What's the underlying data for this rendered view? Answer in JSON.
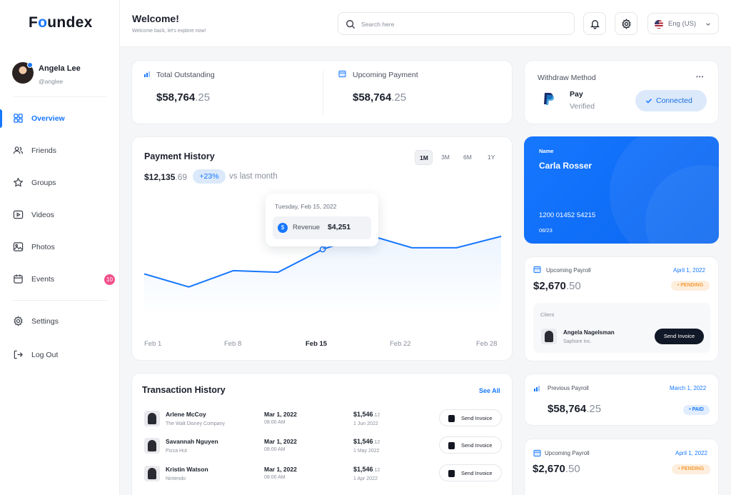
{
  "brand": {
    "name_prefix": "F",
    "name_o": "o",
    "name_suffix": "undex"
  },
  "user": {
    "name": "Angela Lee",
    "handle": "@anglee"
  },
  "nav": [
    {
      "label": "Overview",
      "icon": "grid-icon"
    },
    {
      "label": "Friends",
      "icon": "users-icon"
    },
    {
      "label": "Groups",
      "icon": "star-icon"
    },
    {
      "label": "Videos",
      "icon": "video-icon"
    },
    {
      "label": "Photos",
      "icon": "image-icon"
    },
    {
      "label": "Events",
      "icon": "calendar-icon",
      "badge": "10"
    }
  ],
  "nav_bottom": [
    {
      "label": "Settings",
      "icon": "gear-icon"
    },
    {
      "label": "Log Out",
      "icon": "logout-icon"
    }
  ],
  "header": {
    "title": "Welcome!",
    "subtitle": "Welcome back, let's explore now!",
    "search_placeholder": "Search here",
    "language": "Eng (US)"
  },
  "summary": {
    "total_outstanding": {
      "label": "Total Outstanding",
      "amount": "$58,764",
      "cents": ".25"
    },
    "upcoming_payment": {
      "label": "Upcoming Payment",
      "amount": "$58,764",
      "cents": ".25"
    }
  },
  "withdraw": {
    "title": "Withdraw Method",
    "more": "•••",
    "method": "Pay",
    "status": "Verified",
    "button": "Connected"
  },
  "payment_history": {
    "title": "Payment History",
    "periods": [
      "1M",
      "3M",
      "6M",
      "1Y"
    ],
    "amount": "$12,135",
    "cents": ".69",
    "change": "+23%",
    "compare": "vs last month",
    "tooltip": {
      "date": "Tuesday, Feb 15, 2022",
      "label": "Revenue",
      "value": "$4,251"
    },
    "x_labels": [
      "Feb 1",
      "Feb 8",
      "Feb 15",
      "Feb 22",
      "Feb 28"
    ]
  },
  "chart_data": {
    "type": "line",
    "title": "Payment History",
    "x": [
      "Feb 1",
      "Feb 4",
      "Feb 8",
      "Feb 11",
      "Feb 15",
      "Feb 18",
      "Feb 22",
      "Feb 25",
      "Feb 28"
    ],
    "values": [
      3500,
      3100,
      3600,
      3550,
      4251,
      4700,
      4300,
      4300,
      4650
    ],
    "ylim": [
      2000,
      5500
    ],
    "grid": false
  },
  "card": {
    "name_label": "Name",
    "name": "Carla Rosser",
    "number": "1200 01452 54215",
    "expiry": "08/23"
  },
  "upcoming_payroll": {
    "label": "Upcoming Payroll",
    "date": "April 1, 2022",
    "amount": "$2,670",
    "cents": ".50",
    "status": "PENDING",
    "client_label": "Client",
    "client_name": "Angela Nagelsman",
    "client_company": "Saphore Inc.",
    "button": "Send Invoice"
  },
  "previous_payroll": {
    "label": "Previous Payroll",
    "date": "March 1, 2022",
    "amount": "$58,764",
    "cents": ".25",
    "status": "PAID"
  },
  "upcoming_payroll_2": {
    "label": "Upcoming Payroll",
    "date": "April 1, 2022",
    "amount": "$2,670",
    "cents": ".50",
    "status": "PENDING"
  },
  "transactions": {
    "title": "Transaction History",
    "see_all": "See All",
    "rows": [
      {
        "name": "Arlene McCoy",
        "company": "The Walt Disney Company",
        "date": "Mar 1, 2022",
        "time": "08:00 AM",
        "amount": "$1,546",
        "cents": ".12",
        "due": "1 Jun 2022",
        "button": "Send Invoice"
      },
      {
        "name": "Savannah Nguyen",
        "company": "Pizza Hut",
        "date": "Mar 1, 2022",
        "time": "08:00 AM",
        "amount": "$1,546",
        "cents": ".12",
        "due": "1 May 2022",
        "button": "Send Invoice"
      },
      {
        "name": "Kristin Watson",
        "company": "Nintendo",
        "date": "Mar 1, 2022",
        "time": "08:00 AM",
        "amount": "$1,546",
        "cents": ".12",
        "due": "1 Apr 2022",
        "button": "Send Invoice"
      }
    ]
  },
  "colors": {
    "accent": "#1677ff",
    "pink": "#f0508a",
    "pending": "#f59e3b",
    "dark": "#111827"
  }
}
